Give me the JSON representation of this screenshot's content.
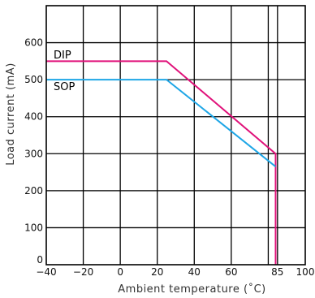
{
  "chart_data": {
    "type": "line",
    "title": "",
    "xlabel": "Ambient  temperature  (˚C)",
    "ylabel": "Load  current  (mA)",
    "xlim": [
      -40,
      100
    ],
    "ylim": [
      0,
      700
    ],
    "xticks": [
      -40,
      -20,
      0,
      20,
      40,
      60,
      80,
      85,
      100
    ],
    "xtick_labels": [
      "−40",
      "−20",
      "0",
      "20",
      "40",
      "60",
      "",
      "85",
      "100"
    ],
    "yticks": [
      0,
      100,
      200,
      300,
      400,
      500,
      600,
      700
    ],
    "ytick_labels": [
      "0",
      "100",
      "200",
      "300",
      "400",
      "500",
      "600",
      ""
    ],
    "grid": true,
    "series": [
      {
        "name": "DIP",
        "color": "#e0127a",
        "x": [
          -40,
          25,
          84,
          84
        ],
        "y": [
          550,
          550,
          300,
          0
        ]
      },
      {
        "name": "SOP",
        "color": "#1ea6e6",
        "x": [
          -40,
          25,
          84
        ],
        "y": [
          500,
          500,
          265
        ]
      }
    ]
  }
}
